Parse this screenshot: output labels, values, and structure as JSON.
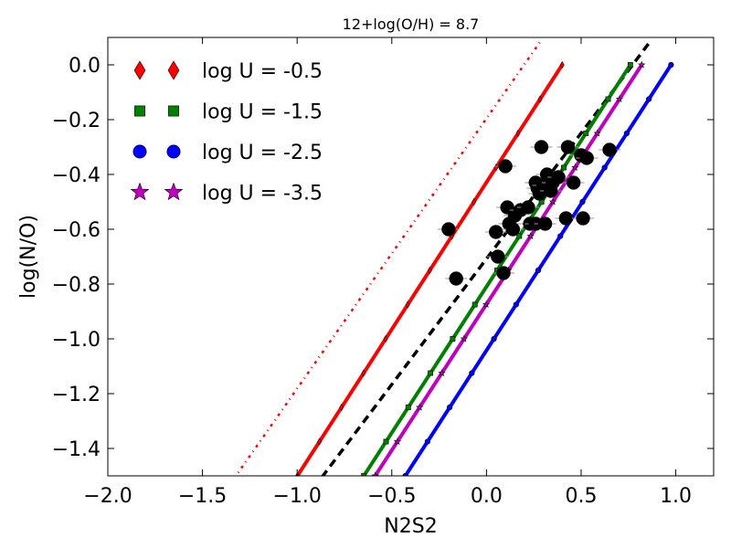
{
  "chart_data": {
    "type": "line",
    "title": "12+log(O/H) = 8.7",
    "xlabel": "N2S2",
    "ylabel": "log(N/O)",
    "xlim": [
      -2.0,
      1.2
    ],
    "ylim": [
      -1.5,
      0.1
    ],
    "xticks": [
      -2.0,
      -1.5,
      -1.0,
      -0.5,
      0.0,
      0.5,
      1.0
    ],
    "xtick_labels": [
      "−2.0",
      "−1.5",
      "−1.0",
      "−0.5",
      "0.0",
      "0.5",
      "1.0"
    ],
    "yticks": [
      0.0,
      -0.2,
      -0.4,
      -0.6,
      -0.8,
      -1.0,
      -1.2,
      -1.4
    ],
    "ytick_labels": [
      "0.0",
      "−0.2",
      "−0.4",
      "−0.6",
      "−0.8",
      "−1.0",
      "−1.2",
      "−1.4"
    ],
    "legend_position": "top-left",
    "series": [
      {
        "name": "log U = -0.5",
        "color": "#ff0000",
        "marker": "diamond",
        "line": "solid",
        "points": [
          [
            -1.115,
            -1.625
          ],
          [
            0.4,
            0.0
          ]
        ]
      },
      {
        "name": "log U = -1.5",
        "color": "#008000",
        "marker": "square",
        "line": "solid",
        "points": [
          [
            -0.765,
            -1.625
          ],
          [
            0.76,
            0.0
          ]
        ]
      },
      {
        "name": "log U = -2.5",
        "color": "#0000ff",
        "marker": "circle",
        "line": "solid",
        "points": [
          [
            -0.545,
            -1.625
          ],
          [
            0.975,
            0.0
          ]
        ]
      },
      {
        "name": "log U = -3.5",
        "color": "#bf00bf",
        "marker": "star",
        "line": "solid",
        "points": [
          [
            -0.705,
            -1.625
          ],
          [
            0.82,
            0.0
          ]
        ]
      }
    ],
    "reference_lines": [
      {
        "name": "dashed-fit",
        "color": "#000000",
        "style": "dashed",
        "points": [
          [
            -1.0,
            -1.625
          ],
          [
            0.87,
            0.09
          ]
        ]
      },
      {
        "name": "dash-dot-line",
        "color": "#ff0000",
        "style": "dashdot",
        "points": [
          [
            -1.45,
            -1.625
          ],
          [
            0.29,
            0.09
          ]
        ]
      }
    ],
    "observations": {
      "color": "#000000",
      "points": [
        [
          -0.2,
          -0.6
        ],
        [
          -0.16,
          -0.78
        ],
        [
          0.05,
          -0.61
        ],
        [
          0.06,
          -0.7
        ],
        [
          0.09,
          -0.76
        ],
        [
          0.1,
          -0.37
        ],
        [
          0.11,
          -0.52
        ],
        [
          0.12,
          -0.58
        ],
        [
          0.14,
          -0.6
        ],
        [
          0.15,
          -0.55
        ],
        [
          0.18,
          -0.53
        ],
        [
          0.22,
          -0.52
        ],
        [
          0.23,
          -0.58
        ],
        [
          0.26,
          -0.58
        ],
        [
          0.26,
          -0.43
        ],
        [
          0.27,
          -0.45
        ],
        [
          0.28,
          -0.47
        ],
        [
          0.29,
          -0.3
        ],
        [
          0.3,
          -0.44
        ],
        [
          0.31,
          -0.58
        ],
        [
          0.32,
          -0.4
        ],
        [
          0.34,
          -0.46
        ],
        [
          0.35,
          -0.43
        ],
        [
          0.38,
          -0.41
        ],
        [
          0.42,
          -0.56
        ],
        [
          0.43,
          -0.3
        ],
        [
          0.46,
          -0.43
        ],
        [
          0.5,
          -0.33
        ],
        [
          0.51,
          -0.56
        ],
        [
          0.53,
          -0.34
        ],
        [
          0.65,
          -0.31
        ]
      ]
    }
  }
}
